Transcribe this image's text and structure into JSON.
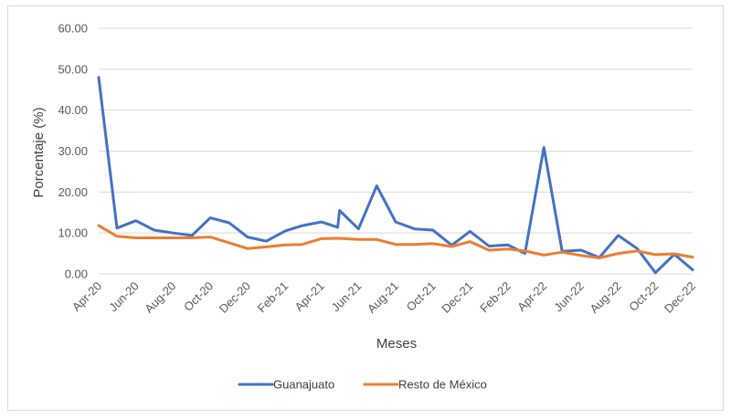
{
  "chart_data": {
    "type": "line",
    "xlabel": "Meses",
    "ylabel": "Porcentaje (%)",
    "ylim": [
      0,
      60
    ],
    "yticks": [
      "0.00",
      "10.00",
      "20.00",
      "30.00",
      "40.00",
      "50.00",
      "60.00"
    ],
    "grid": "horizontal",
    "legend_position": "bottom",
    "x_tick_labels": [
      "Apr-20",
      "Jun-20",
      "Aug-20",
      "Oct-20",
      "Dec-20",
      "Feb-21",
      "Apr-21",
      "Jun-21",
      "Aug-21",
      "Oct-21",
      "Dec-21",
      "Feb-22",
      "Apr-22",
      "Jun-22",
      "Aug-22",
      "Oct-22",
      "Dec-22"
    ],
    "series": [
      {
        "name": "Guanajuato",
        "color": "#4472C4",
        "points": [
          {
            "x": "2020-04-01",
            "y": 48.0
          },
          {
            "x": "2020-05-01",
            "y": 11.2
          },
          {
            "x": "2020-06-01",
            "y": 13.0
          },
          {
            "x": "2020-07-01",
            "y": 10.7
          },
          {
            "x": "2020-08-01",
            "y": 10.0
          },
          {
            "x": "2020-09-01",
            "y": 9.4
          },
          {
            "x": "2020-10-01",
            "y": 13.7
          },
          {
            "x": "2020-11-01",
            "y": 12.5
          },
          {
            "x": "2020-12-01",
            "y": 9.0
          },
          {
            "x": "2021-01-01",
            "y": 8.0
          },
          {
            "x": "2021-02-01",
            "y": 10.5
          },
          {
            "x": "2021-03-01",
            "y": 11.8
          },
          {
            "x": "2021-04-01",
            "y": 12.7
          },
          {
            "x": "2021-04-28",
            "y": 11.4
          },
          {
            "x": "2021-05-01",
            "y": 15.5
          },
          {
            "x": "2021-06-01",
            "y": 11.0
          },
          {
            "x": "2021-07-01",
            "y": 21.5
          },
          {
            "x": "2021-08-01",
            "y": 12.7
          },
          {
            "x": "2021-09-01",
            "y": 11.0
          },
          {
            "x": "2021-10-01",
            "y": 10.7
          },
          {
            "x": "2021-11-01",
            "y": 7.0
          },
          {
            "x": "2021-12-01",
            "y": 10.4
          },
          {
            "x": "2022-01-01",
            "y": 6.8
          },
          {
            "x": "2022-02-01",
            "y": 7.1
          },
          {
            "x": "2022-03-01",
            "y": 5.0
          },
          {
            "x": "2022-04-01",
            "y": 30.9
          },
          {
            "x": "2022-05-01",
            "y": 5.5
          },
          {
            "x": "2022-06-01",
            "y": 5.8
          },
          {
            "x": "2022-07-01",
            "y": 4.0
          },
          {
            "x": "2022-08-01",
            "y": 9.4
          },
          {
            "x": "2022-09-01",
            "y": 6.2
          },
          {
            "x": "2022-10-01",
            "y": 0.3
          },
          {
            "x": "2022-11-01",
            "y": 4.8
          },
          {
            "x": "2022-12-01",
            "y": 1.0
          }
        ]
      },
      {
        "name": "Resto de México",
        "color": "#ED7D31",
        "points": [
          {
            "x": "2020-04-01",
            "y": 11.8
          },
          {
            "x": "2020-05-01",
            "y": 9.2
          },
          {
            "x": "2020-06-01",
            "y": 8.8
          },
          {
            "x": "2020-07-01",
            "y": 8.8
          },
          {
            "x": "2020-08-01",
            "y": 8.8
          },
          {
            "x": "2020-09-01",
            "y": 8.8
          },
          {
            "x": "2020-10-01",
            "y": 9.0
          },
          {
            "x": "2020-11-01",
            "y": 7.6
          },
          {
            "x": "2020-12-01",
            "y": 6.2
          },
          {
            "x": "2021-01-01",
            "y": 6.6
          },
          {
            "x": "2021-02-01",
            "y": 7.1
          },
          {
            "x": "2021-03-01",
            "y": 7.2
          },
          {
            "x": "2021-04-01",
            "y": 8.6
          },
          {
            "x": "2021-05-01",
            "y": 8.7
          },
          {
            "x": "2021-06-01",
            "y": 8.4
          },
          {
            "x": "2021-07-01",
            "y": 8.4
          },
          {
            "x": "2021-08-01",
            "y": 7.2
          },
          {
            "x": "2021-09-01",
            "y": 7.2
          },
          {
            "x": "2021-10-01",
            "y": 7.4
          },
          {
            "x": "2021-11-01",
            "y": 6.7
          },
          {
            "x": "2021-12-01",
            "y": 7.9
          },
          {
            "x": "2022-01-01",
            "y": 5.8
          },
          {
            "x": "2022-02-01",
            "y": 6.1
          },
          {
            "x": "2022-03-01",
            "y": 5.6
          },
          {
            "x": "2022-04-01",
            "y": 4.6
          },
          {
            "x": "2022-05-01",
            "y": 5.3
          },
          {
            "x": "2022-06-01",
            "y": 4.5
          },
          {
            "x": "2022-07-01",
            "y": 3.9
          },
          {
            "x": "2022-08-01",
            "y": 5.0
          },
          {
            "x": "2022-09-01",
            "y": 5.6
          },
          {
            "x": "2022-10-01",
            "y": 4.7
          },
          {
            "x": "2022-11-01",
            "y": 4.9
          },
          {
            "x": "2022-12-01",
            "y": 4.1
          }
        ]
      }
    ]
  }
}
